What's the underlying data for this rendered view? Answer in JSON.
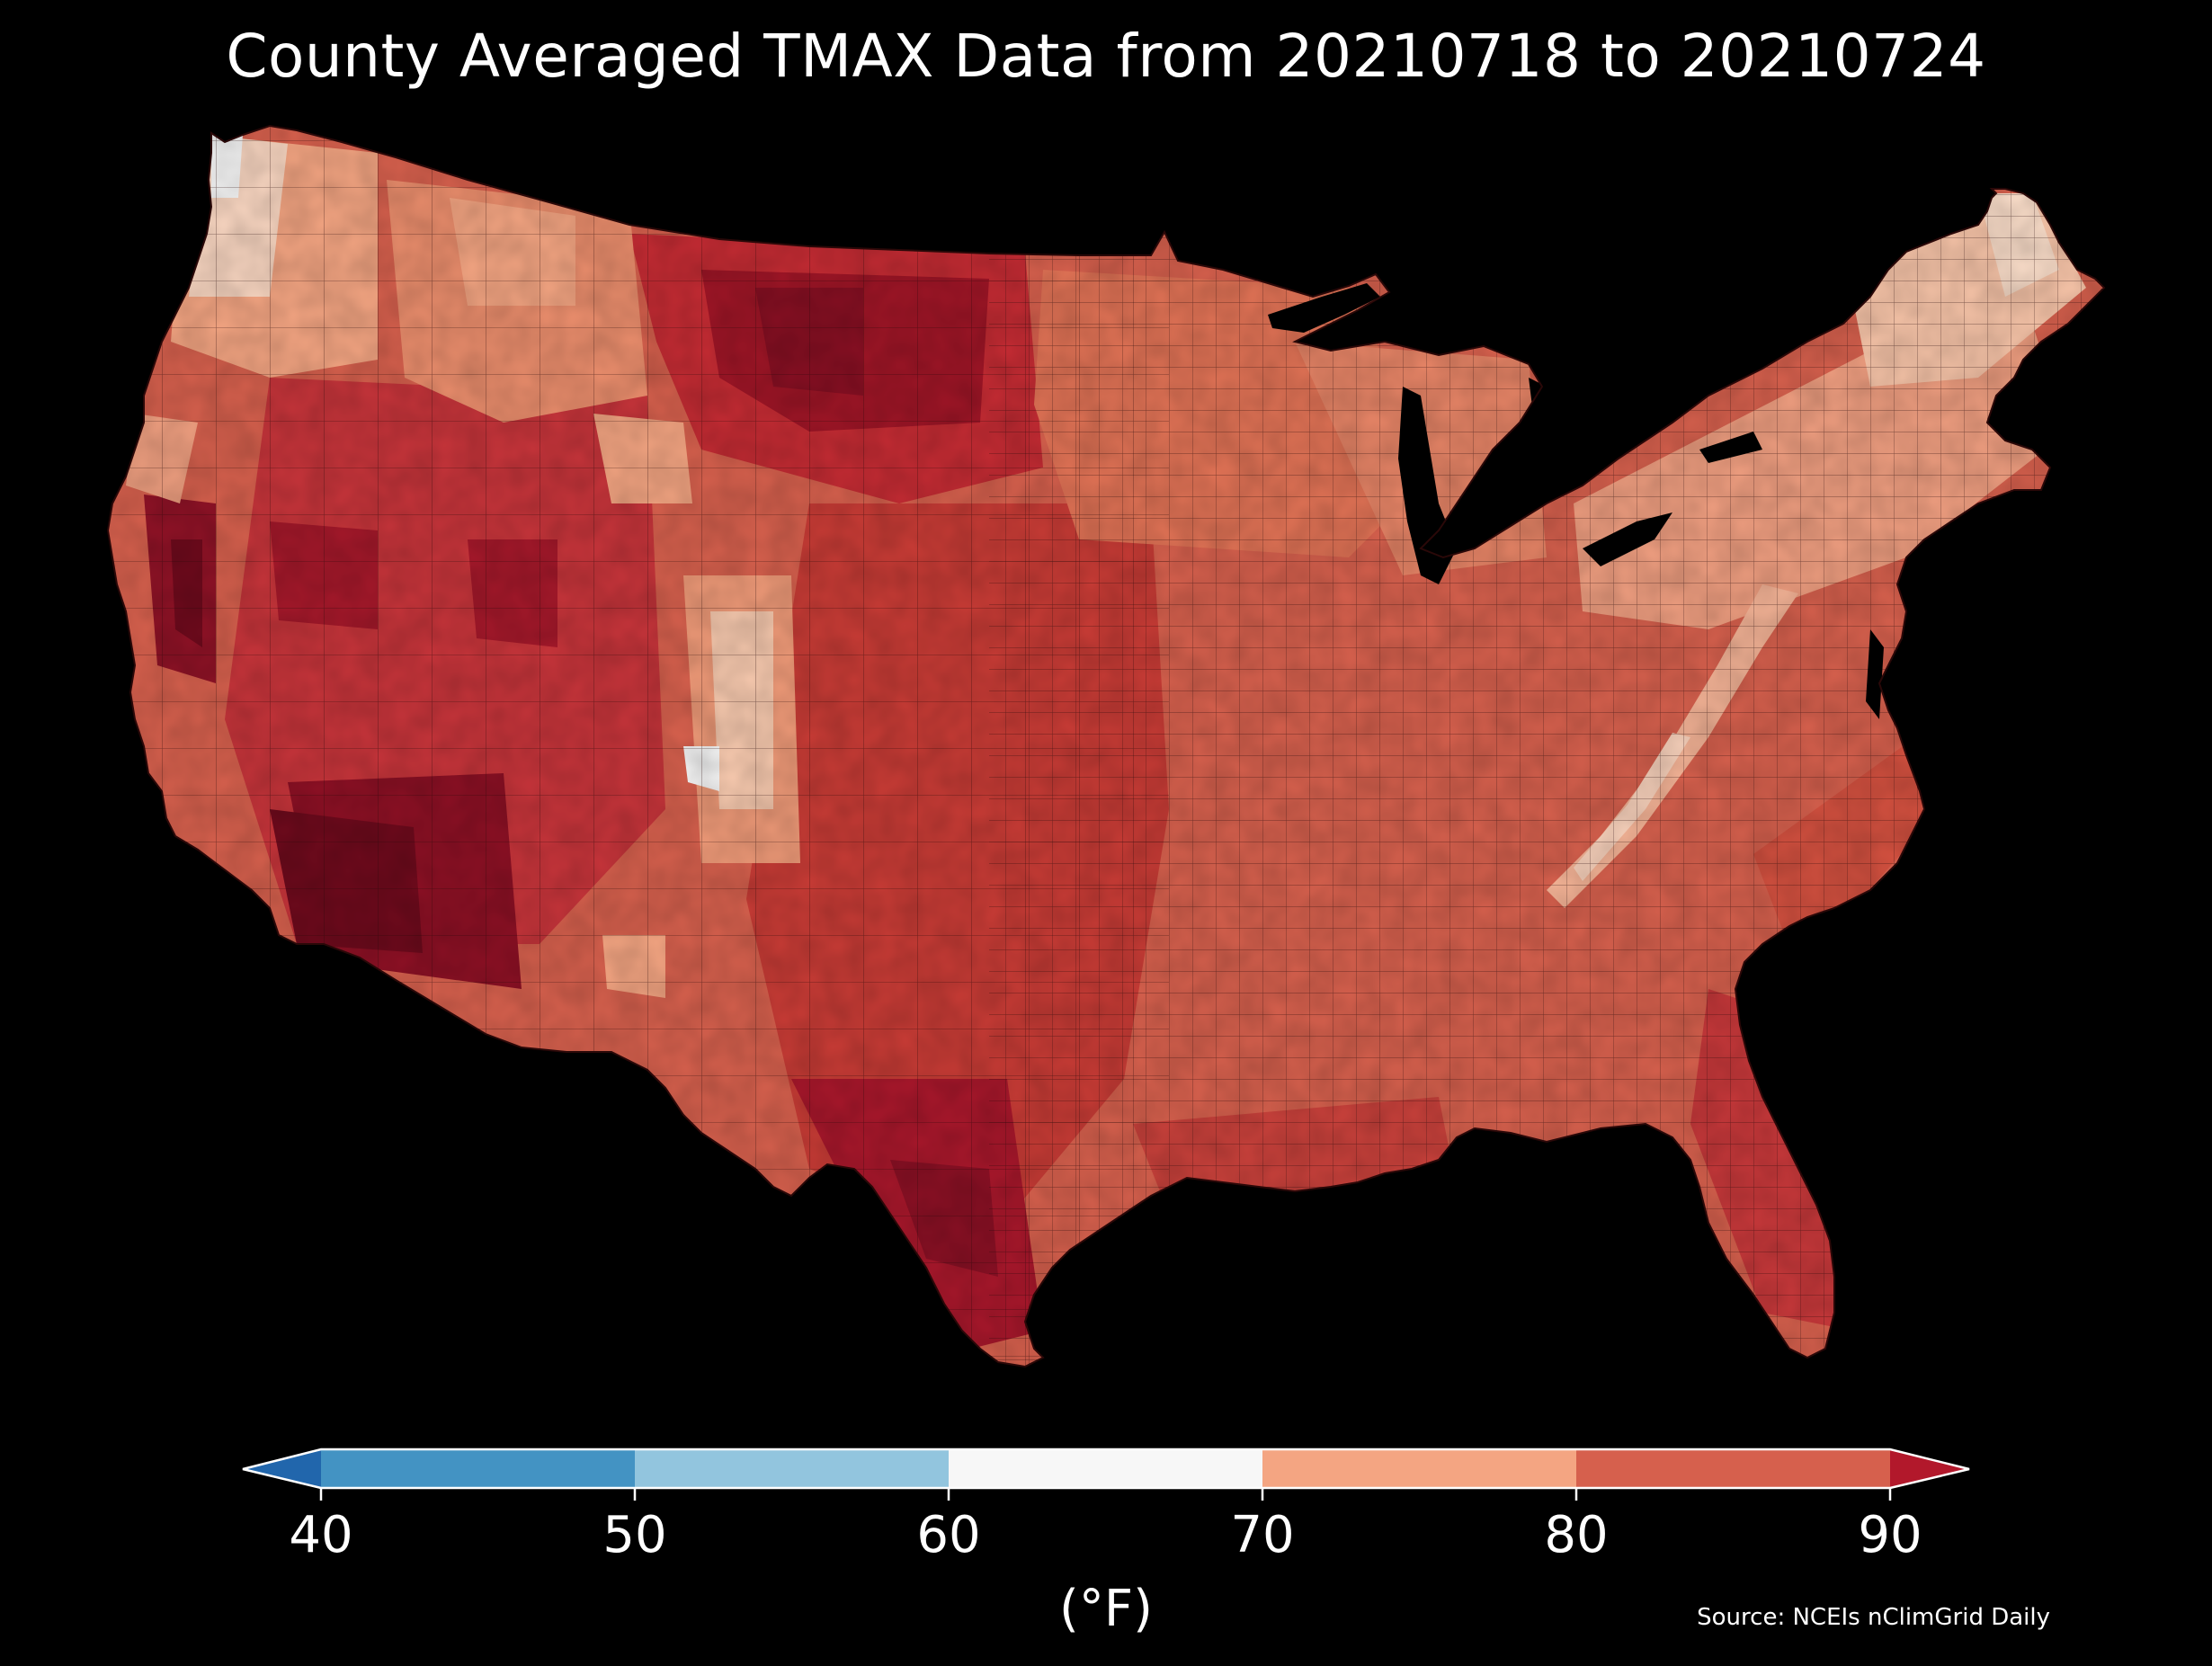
{
  "title": "County Averaged TMAX Data from 20210718 to 20210724",
  "source": "Source: NCEIs nClimGrid Daily",
  "colorbar": {
    "units": "(°F)",
    "ticks": [
      "40",
      "50",
      "60",
      "70",
      "80",
      "90"
    ],
    "bins": [
      {
        "range": "<40",
        "color": "#2166ac"
      },
      {
        "range": "40-50",
        "color": "#4393c3"
      },
      {
        "range": "50-60",
        "color": "#92c5de"
      },
      {
        "range": "60-70",
        "color": "#f7f7f7"
      },
      {
        "range": "70-80",
        "color": "#f4a582"
      },
      {
        "range": "80-90",
        "color": "#d6604d"
      },
      {
        "range": ">90",
        "color": "#b2182b"
      }
    ],
    "extend": "both"
  },
  "map": {
    "region": "Contiguous United States",
    "variable": "TMAX",
    "background": "#000000",
    "regional_pattern": [
      {
        "area": "Pacific Northwest coast",
        "value_range": "60-70"
      },
      {
        "area": "Northern Rockies / Idaho",
        "value_range": "70-80"
      },
      {
        "area": "Colorado Rockies",
        "value_range": "60-70"
      },
      {
        "area": "Western Dakotas / Eastern Montana",
        "value_range": ">90"
      },
      {
        "area": "Central Valley California / Desert Southwest",
        "value_range": ">90"
      },
      {
        "area": "Great Plains / Texas",
        "value_range": "80-90"
      },
      {
        "area": "Upper Midwest / Ohio Valley",
        "value_range": "80-90"
      },
      {
        "area": "Appalachians",
        "value_range": "70-80"
      },
      {
        "area": "New England",
        "value_range": "70-80"
      },
      {
        "area": "Florida / Gulf Coast",
        "value_range": "80-90"
      }
    ]
  }
}
